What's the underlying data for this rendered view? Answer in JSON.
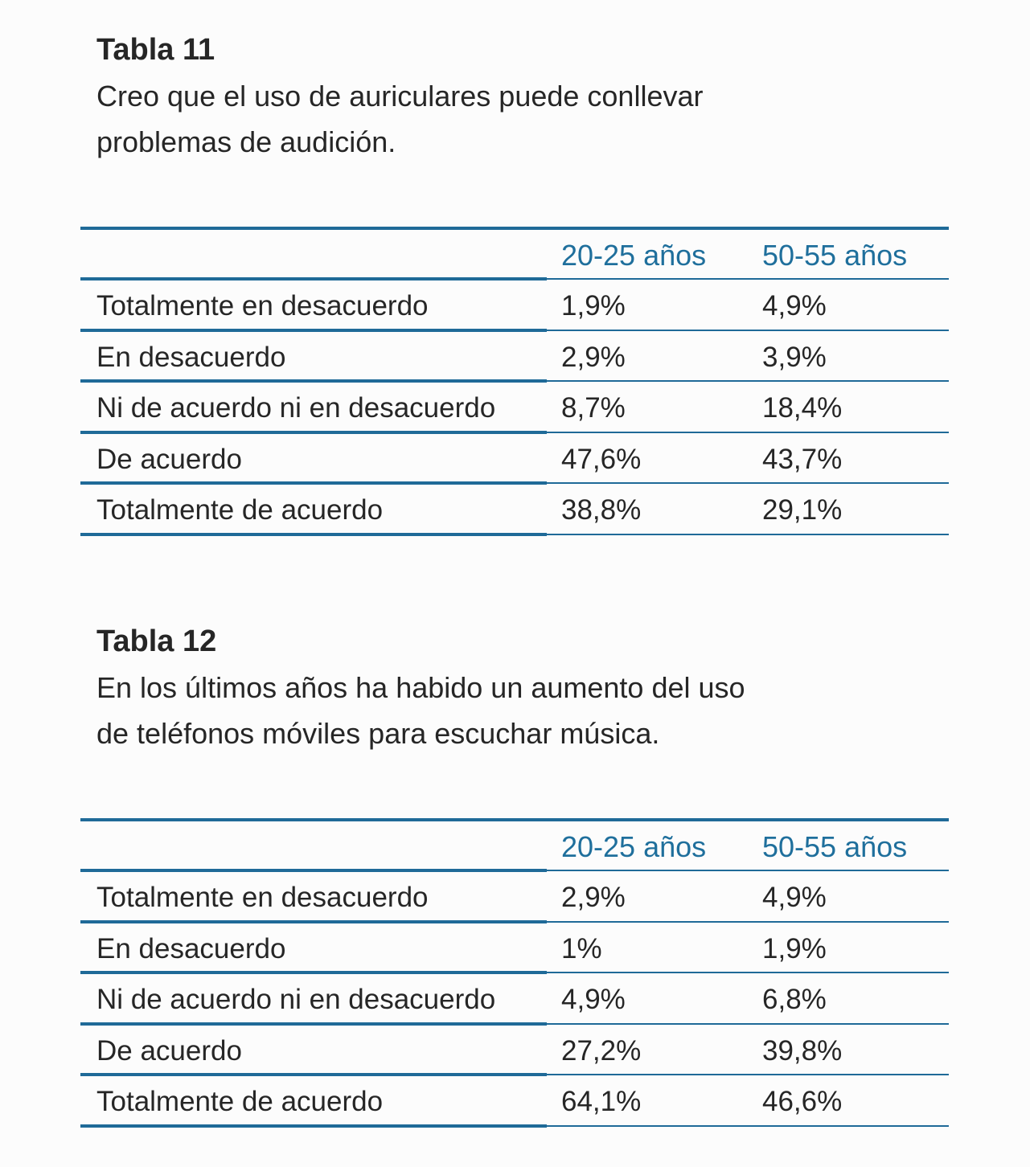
{
  "tables": [
    {
      "title": "Tabla 11",
      "caption": [
        "Creo que el uso de auriculares puede conllevar",
        "problemas de audición."
      ],
      "header": [
        "20-25 años",
        "50-55 años"
      ],
      "rows": [
        [
          "Totalmente en desacuerdo",
          "1,9%",
          "4,9%"
        ],
        [
          "En desacuerdo",
          "2,9%",
          "3,9%"
        ],
        [
          "Ni de acuerdo ni en desacuerdo",
          "8,7%",
          "18,4%"
        ],
        [
          "De acuerdo",
          "47,6%",
          "43,7%"
        ],
        [
          "Totalmente de acuerdo",
          "38,8%",
          "29,1%"
        ]
      ]
    },
    {
      "title": "Tabla 12",
      "caption": [
        "En los últimos años ha habido un aumento del uso",
        "de teléfonos móviles para escuchar música."
      ],
      "header": [
        "20-25 años",
        "50-55 años"
      ],
      "rows": [
        [
          "Totalmente en desacuerdo",
          "2,9%",
          "4,9%"
        ],
        [
          "En desacuerdo",
          "1%",
          "1,9%"
        ],
        [
          "Ni de acuerdo ni en desacuerdo",
          "4,9%",
          "6,8%"
        ],
        [
          "De acuerdo",
          "27,2%",
          "39,8%"
        ],
        [
          "Totalmente de acuerdo",
          "64,1%",
          "46,6%"
        ]
      ]
    }
  ]
}
